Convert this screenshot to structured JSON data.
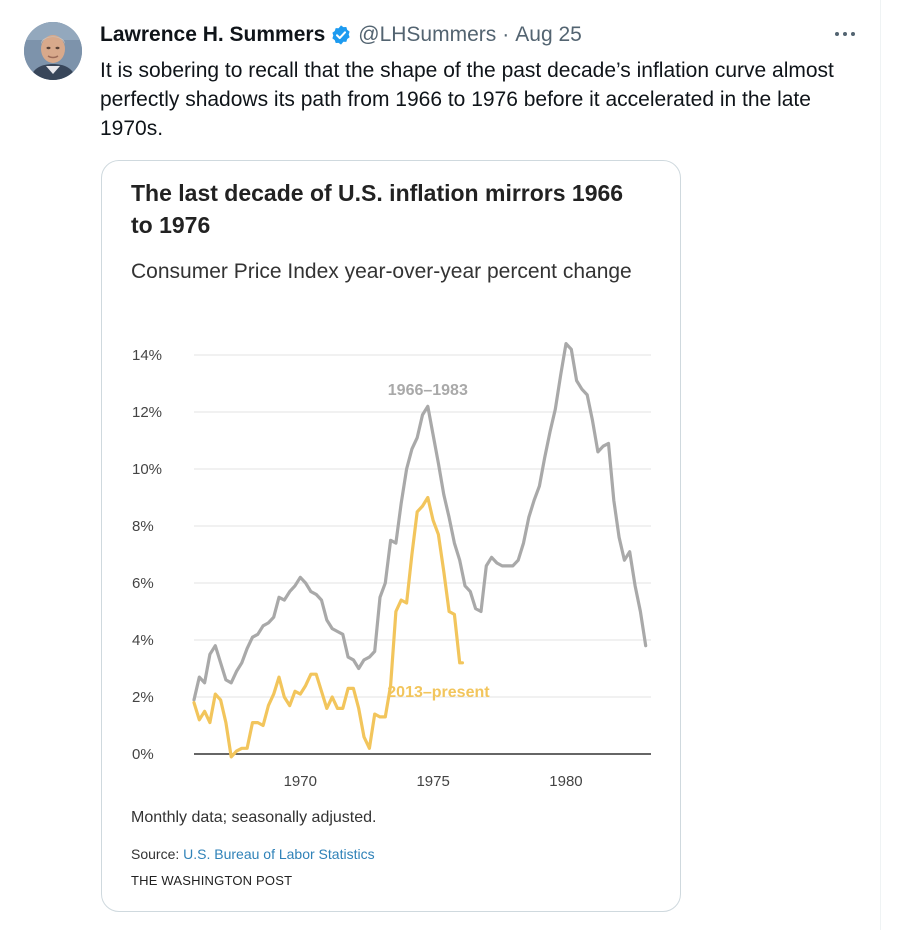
{
  "tweet": {
    "author_name": "Lawrence H. Summers",
    "handle": "@LHSummers",
    "separator": "·",
    "date": "Aug 25",
    "text": "It is sobering to recall that the shape of the past decade’s inflation curve almost perfectly shadows its path from 1966 to 1976 before it accelerated in the late 1970s.",
    "icons": {
      "verified": "verified-badge-icon",
      "more": "more-options-icon"
    },
    "colors": {
      "verified": "#1d9bf0",
      "secondary_text": "#536471"
    }
  },
  "chart_card": {
    "title": "The last decade of U.S. inflation mirrors 1966 to 1976",
    "subtitle": "Consumer Price Index year-over-year percent change",
    "note": "Monthly data; seasonally adjusted.",
    "source_prefix": "Source:",
    "source_name": "U.S. Bureau of Labor Statistics",
    "publisher": "THE WASHINGTON POST"
  },
  "chart_data": {
    "type": "line",
    "x_ticks": [
      1970,
      1975,
      1980
    ],
    "x_tick_labels": [
      "1970",
      "1975",
      "1980"
    ],
    "xlim": [
      1966,
      1983.2
    ],
    "ylim": [
      0,
      14
    ],
    "y_ticks": [
      0,
      2,
      4,
      6,
      8,
      10,
      12,
      14
    ],
    "y_tick_labels": [
      "0%",
      "2%",
      "4%",
      "6%",
      "8%",
      "10%",
      "12%",
      "14%"
    ],
    "grid": true,
    "series": [
      {
        "name": "1966–1983",
        "color": "#a9a9a9",
        "x": [
          1966.0,
          1966.2,
          1966.4,
          1966.6,
          1966.8,
          1967.0,
          1967.2,
          1967.4,
          1967.6,
          1967.8,
          1968.0,
          1968.2,
          1968.4,
          1968.6,
          1968.8,
          1969.0,
          1969.2,
          1969.4,
          1969.6,
          1969.8,
          1970.0,
          1970.2,
          1970.4,
          1970.6,
          1970.8,
          1971.0,
          1971.2,
          1971.4,
          1971.6,
          1971.8,
          1972.0,
          1972.2,
          1972.4,
          1972.6,
          1972.8,
          1973.0,
          1973.2,
          1973.4,
          1973.6,
          1973.8,
          1974.0,
          1974.2,
          1974.4,
          1974.6,
          1974.8,
          1975.0,
          1975.2,
          1975.4,
          1975.6,
          1975.8,
          1976.0,
          1976.2,
          1976.4,
          1976.6,
          1976.8,
          1977.0,
          1977.2,
          1977.4,
          1977.6,
          1977.8,
          1978.0,
          1978.2,
          1978.4,
          1978.6,
          1978.8,
          1979.0,
          1979.2,
          1979.4,
          1979.6,
          1979.8,
          1980.0,
          1980.2,
          1980.4,
          1980.6,
          1980.8,
          1981.0,
          1981.2,
          1981.4,
          1981.6,
          1981.8,
          1982.0,
          1982.2,
          1982.4,
          1982.6,
          1982.8,
          1983.0
        ],
        "values": [
          1.9,
          2.7,
          2.5,
          3.5,
          3.8,
          3.2,
          2.6,
          2.5,
          2.9,
          3.2,
          3.7,
          4.1,
          4.2,
          4.5,
          4.6,
          4.8,
          5.5,
          5.4,
          5.7,
          5.9,
          6.2,
          6.0,
          5.7,
          5.6,
          5.4,
          4.7,
          4.4,
          4.3,
          4.2,
          3.4,
          3.3,
          3.0,
          3.3,
          3.4,
          3.6,
          5.5,
          6.0,
          7.5,
          7.4,
          8.8,
          10.0,
          10.7,
          11.1,
          11.9,
          12.2,
          11.2,
          10.2,
          9.1,
          8.3,
          7.4,
          6.8,
          5.9,
          5.7,
          5.1,
          5.0,
          6.6,
          6.9,
          6.7,
          6.6,
          6.6,
          6.6,
          6.8,
          7.4,
          8.3,
          8.9,
          9.4,
          10.4,
          11.3,
          12.1,
          13.3,
          14.4,
          14.2,
          13.1,
          12.8,
          12.6,
          11.7,
          10.6,
          10.8,
          10.9,
          8.9,
          7.6,
          6.8,
          7.1,
          5.9,
          5.0,
          3.8
        ]
      },
      {
        "name": "2013–present",
        "color": "#f2c55c",
        "x": [
          1966.0,
          1966.2,
          1966.4,
          1966.6,
          1966.8,
          1967.0,
          1967.2,
          1967.4,
          1967.6,
          1967.8,
          1968.0,
          1968.2,
          1968.4,
          1968.6,
          1968.8,
          1969.0,
          1969.2,
          1969.4,
          1969.6,
          1969.8,
          1970.0,
          1970.2,
          1970.4,
          1970.6,
          1970.8,
          1971.0,
          1971.2,
          1971.4,
          1971.6,
          1971.8,
          1972.0,
          1972.2,
          1972.4,
          1972.6,
          1972.8,
          1973.0,
          1973.2,
          1973.4,
          1973.6,
          1973.8,
          1974.0,
          1974.2,
          1974.4,
          1974.6,
          1974.8,
          1975.0,
          1975.2,
          1975.4,
          1975.6,
          1975.8,
          1976.0,
          1976.1
        ],
        "values": [
          1.8,
          1.2,
          1.5,
          1.1,
          2.1,
          1.9,
          1.1,
          -0.1,
          0.1,
          0.2,
          0.2,
          1.1,
          1.1,
          1.0,
          1.7,
          2.1,
          2.7,
          2.0,
          1.7,
          2.2,
          2.1,
          2.4,
          2.8,
          2.8,
          2.2,
          1.6,
          2.0,
          1.6,
          1.6,
          2.3,
          2.3,
          1.6,
          0.6,
          0.2,
          1.4,
          1.3,
          1.3,
          2.4,
          5.0,
          5.4,
          5.3,
          7.0,
          8.5,
          8.7,
          9.0,
          8.2,
          7.7,
          6.4,
          5.0,
          4.9,
          3.2,
          3.2
        ]
      }
    ],
    "series_labels": [
      "1966–1983",
      "2013–present"
    ]
  }
}
